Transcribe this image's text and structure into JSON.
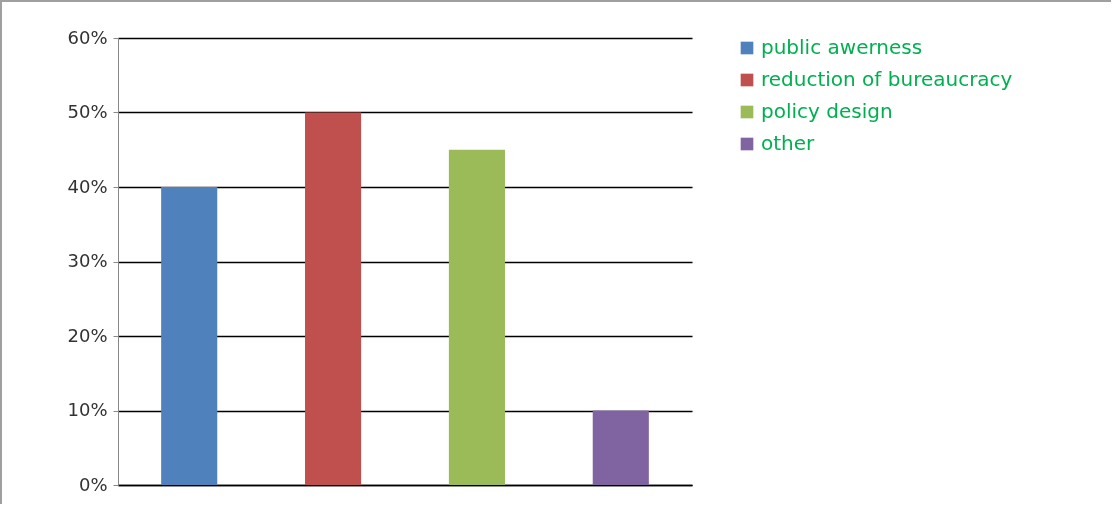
{
  "chart_data": {
    "type": "bar",
    "categories": [
      null,
      null,
      null,
      null
    ],
    "series": [
      {
        "name": "public awerness",
        "color": "#4f81bd",
        "values": [
          40,
          null,
          null,
          null
        ]
      },
      {
        "name": "reduction of bureaucracy",
        "color": "#c0504d",
        "values": [
          null,
          50,
          null,
          null
        ]
      },
      {
        "name": "policy design",
        "color": "#9bbb59",
        "values": [
          null,
          null,
          45,
          null
        ]
      },
      {
        "name": "other",
        "color": "#8064a2",
        "values": [
          null,
          null,
          null,
          10
        ]
      }
    ],
    "ylim": [
      0,
      60
    ],
    "yticks": [
      {
        "value": 0,
        "label": "0%"
      },
      {
        "value": 10,
        "label": "10%"
      },
      {
        "value": 20,
        "label": "20%"
      },
      {
        "value": 30,
        "label": "30%"
      },
      {
        "value": 40,
        "label": "40%"
      },
      {
        "value": 50,
        "label": "50%"
      },
      {
        "value": 60,
        "label": "60%"
      }
    ],
    "grid": "y",
    "legend": "right"
  }
}
